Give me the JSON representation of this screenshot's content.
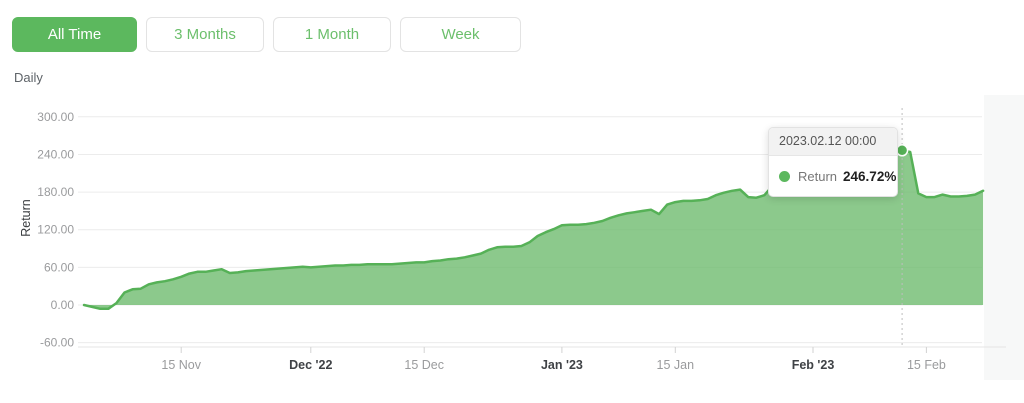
{
  "toolbar": {
    "buttons": [
      {
        "label": "All Time",
        "active": true
      },
      {
        "label": "3 Months",
        "active": false
      },
      {
        "label": "1 Month",
        "active": false
      },
      {
        "label": "Week",
        "active": false
      }
    ]
  },
  "frequency_label": "Daily",
  "tooltip": {
    "date": "2023.02.12 00:00",
    "series": "Return",
    "value": "246.72%"
  },
  "colors": {
    "accent_green": "#5cb85e",
    "line_green": "#56b157",
    "fill_green": "#6cba6b",
    "grid": "#ececec",
    "axis": "#e4e4e4",
    "tick_label_minor": "#9a9b9d",
    "tick_label_major": "#3f4246",
    "tracker_dash": "#bdbdbd"
  },
  "chart_data": {
    "type": "area",
    "title": "",
    "xlabel": "",
    "ylabel": "Return",
    "interval": "daily",
    "start_date": "2022-11-03",
    "end_date": "2023-02-22",
    "ylim": [
      -60,
      300
    ],
    "grid": "horizontal",
    "legend_position": "none",
    "y_ticks": [
      300,
      240,
      180,
      120,
      60,
      0,
      -60
    ],
    "x_ticks": [
      {
        "label": "15 Nov",
        "index": 12,
        "major": false
      },
      {
        "label": "Dec '22",
        "index": 28,
        "major": true
      },
      {
        "label": "15 Dec",
        "index": 42,
        "major": false
      },
      {
        "label": "Jan '23",
        "index": 59,
        "major": true
      },
      {
        "label": "15 Jan",
        "index": 73,
        "major": false
      },
      {
        "label": "Feb '23",
        "index": 90,
        "major": true
      },
      {
        "label": "15 Feb",
        "index": 104,
        "major": false
      }
    ],
    "values": [
      0,
      -3,
      -6,
      -6,
      3,
      20,
      25,
      26,
      33,
      36,
      38,
      41,
      45,
      50,
      53,
      53,
      55,
      57,
      51,
      52,
      54,
      55,
      56,
      57,
      58,
      59,
      60,
      61,
      60,
      61,
      62,
      63,
      63,
      64,
      64,
      65,
      65,
      65,
      65,
      66,
      67,
      68,
      68,
      70,
      71,
      73,
      74,
      76,
      79,
      82,
      88,
      92,
      93,
      93,
      94,
      100,
      110,
      116,
      121,
      127,
      128,
      128,
      129,
      131,
      134,
      139,
      143,
      146,
      148,
      150,
      152,
      145,
      160,
      164,
      166,
      166,
      167,
      169,
      175,
      179,
      182,
      184,
      172,
      171,
      175,
      190,
      197,
      210,
      218,
      225,
      229,
      231,
      233,
      235,
      237,
      238,
      239,
      240,
      241,
      242,
      243,
      246.72,
      244,
      178,
      172,
      172,
      176,
      173,
      173,
      174,
      176,
      182
    ],
    "active_point": {
      "index": 101,
      "value": 246.72,
      "date": "2023.02.12 00:00",
      "series": "Return"
    }
  }
}
